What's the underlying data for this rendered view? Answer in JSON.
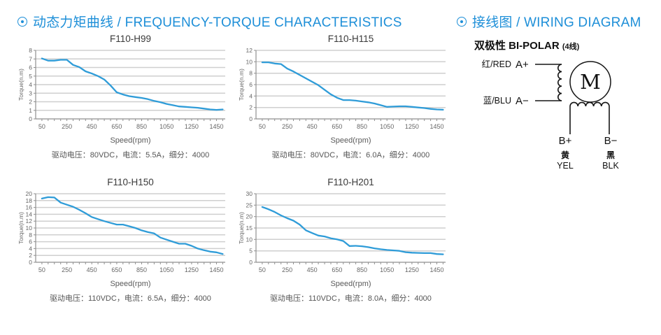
{
  "headers": {
    "left_title": "动态力矩曲线 / FREQUENCY-TORQUE CHARACTERISTICS",
    "right_title": "接线图 / WIRING DIAGRAM"
  },
  "colors": {
    "accent_blue": "#1e8fd8",
    "line_blue": "#2f9cd8",
    "grid": "#cfcfcf",
    "axis": "#8f8f8f",
    "tick_text": "#666666",
    "title_text": "#3a3a3a",
    "caption_text": "#555555",
    "diagram_black": "#151515"
  },
  "chart_data": [
    {
      "type": "line",
      "title": "F110-H99",
      "xlabel": "Speed(rpm)",
      "ylabel": "Torque(n.m)",
      "caption": "驱动电压：80VDC，电流：5.5A，细分：4000",
      "xlim": [
        0,
        1520
      ],
      "ylim": [
        0,
        8
      ],
      "y_ticks": [
        0,
        1,
        2,
        3,
        4,
        5,
        6,
        7,
        8
      ],
      "x_tick_labels": [
        50,
        250,
        450,
        650,
        850,
        1050,
        1250,
        1450
      ],
      "x_minor_step": 50,
      "grid": "horizontal",
      "legend": "none",
      "line_color": "#2f9cd8",
      "x": [
        50,
        100,
        150,
        200,
        250,
        300,
        350,
        400,
        450,
        500,
        550,
        600,
        650,
        700,
        750,
        800,
        850,
        900,
        950,
        1000,
        1050,
        1100,
        1150,
        1200,
        1250,
        1300,
        1350,
        1400,
        1450,
        1500
      ],
      "values": [
        7.05,
        6.8,
        6.8,
        6.9,
        6.9,
        6.3,
        6.05,
        5.55,
        5.3,
        5.0,
        4.6,
        3.9,
        3.1,
        2.85,
        2.65,
        2.55,
        2.45,
        2.3,
        2.1,
        1.95,
        1.75,
        1.6,
        1.45,
        1.4,
        1.35,
        1.3,
        1.2,
        1.1,
        1.05,
        1.1
      ]
    },
    {
      "type": "line",
      "title": "F110-H115",
      "xlabel": "Speed(rpm)",
      "ylabel": "Torque(n.m)",
      "caption": "驱动电压：80VDC，电流：6.0A，细分：4000",
      "xlim": [
        0,
        1520
      ],
      "ylim": [
        0,
        12
      ],
      "y_ticks": [
        0,
        2,
        4,
        6,
        8,
        10,
        12
      ],
      "x_tick_labels": [
        50,
        250,
        450,
        650,
        850,
        1050,
        1250,
        1450
      ],
      "x_minor_step": 50,
      "grid": "horizontal",
      "legend": "none",
      "line_color": "#2f9cd8",
      "x": [
        50,
        100,
        150,
        200,
        250,
        300,
        350,
        400,
        450,
        500,
        550,
        600,
        650,
        700,
        750,
        800,
        850,
        900,
        950,
        1000,
        1050,
        1100,
        1150,
        1200,
        1250,
        1300,
        1350,
        1400,
        1450,
        1500
      ],
      "values": [
        9.9,
        9.9,
        9.7,
        9.6,
        8.8,
        8.3,
        7.7,
        7.1,
        6.5,
        5.9,
        5.1,
        4.3,
        3.7,
        3.3,
        3.3,
        3.2,
        3.05,
        2.9,
        2.7,
        2.4,
        2.1,
        2.15,
        2.2,
        2.2,
        2.1,
        2.0,
        1.9,
        1.75,
        1.65,
        1.6
      ]
    },
    {
      "type": "line",
      "title": "F110-H150",
      "xlabel": "Speed(rpm)",
      "ylabel": "Torque(n.m)",
      "caption": "驱动电压：110VDC，电流：6.5A，细分：4000",
      "xlim": [
        0,
        1520
      ],
      "ylim": [
        0,
        20
      ],
      "y_ticks": [
        0,
        2,
        4,
        6,
        8,
        10,
        12,
        14,
        16,
        18,
        20
      ],
      "x_tick_labels": [
        50,
        250,
        450,
        650,
        850,
        1050,
        1250,
        1450
      ],
      "x_minor_step": 50,
      "grid": "horizontal",
      "legend": "none",
      "line_color": "#2f9cd8",
      "x": [
        50,
        100,
        150,
        200,
        250,
        300,
        350,
        400,
        450,
        500,
        550,
        600,
        650,
        700,
        750,
        800,
        850,
        900,
        950,
        1000,
        1050,
        1100,
        1150,
        1200,
        1250,
        1300,
        1350,
        1400,
        1450,
        1500
      ],
      "values": [
        18.6,
        19.0,
        18.9,
        17.4,
        16.8,
        16.2,
        15.3,
        14.3,
        13.2,
        12.6,
        12.0,
        11.5,
        11.0,
        11.0,
        10.5,
        10.0,
        9.3,
        8.8,
        8.4,
        7.2,
        6.6,
        6.0,
        5.4,
        5.4,
        4.8,
        4.0,
        3.5,
        3.1,
        2.9,
        2.4
      ]
    },
    {
      "type": "line",
      "title": "F110-H201",
      "xlabel": "Speed(rpm)",
      "ylabel": "Torque(n.m)",
      "caption": "驱动电压：110VDC，电流：8.0A，细分：4000",
      "xlim": [
        0,
        1520
      ],
      "ylim": [
        0,
        30
      ],
      "y_ticks": [
        0,
        5,
        10,
        15,
        20,
        25,
        30
      ],
      "x_tick_labels": [
        50,
        250,
        450,
        650,
        850,
        1050,
        1250,
        1450
      ],
      "x_minor_step": 50,
      "grid": "horizontal",
      "legend": "none",
      "line_color": "#2f9cd8",
      "x": [
        50,
        100,
        150,
        200,
        250,
        300,
        350,
        400,
        450,
        500,
        550,
        600,
        650,
        700,
        750,
        800,
        850,
        900,
        950,
        1000,
        1050,
        1100,
        1150,
        1200,
        1250,
        1300,
        1350,
        1400,
        1450,
        1500
      ],
      "values": [
        24.2,
        23.2,
        22.0,
        20.5,
        19.3,
        18.2,
        16.5,
        14.0,
        12.8,
        11.7,
        11.3,
        10.5,
        10.0,
        9.3,
        7.1,
        7.2,
        7.0,
        6.6,
        6.1,
        5.7,
        5.4,
        5.2,
        5.0,
        4.4,
        4.2,
        4.1,
        4.0,
        4.0,
        3.6,
        3.5
      ]
    }
  ],
  "wiring": {
    "title_zh": "双极性 BI-POLAR",
    "title_suffix": "(4线)",
    "red_label": "红/RED",
    "a_plus": "A+",
    "blu_label": "蓝/BLU",
    "a_minus": "A−",
    "motor_letter": "M",
    "b_plus": "B+",
    "b_minus": "B−",
    "b_plus_color_zh": "黄",
    "b_plus_color_en": "YEL",
    "b_minus_color_zh": "黑",
    "b_minus_color_en": "BLK"
  }
}
